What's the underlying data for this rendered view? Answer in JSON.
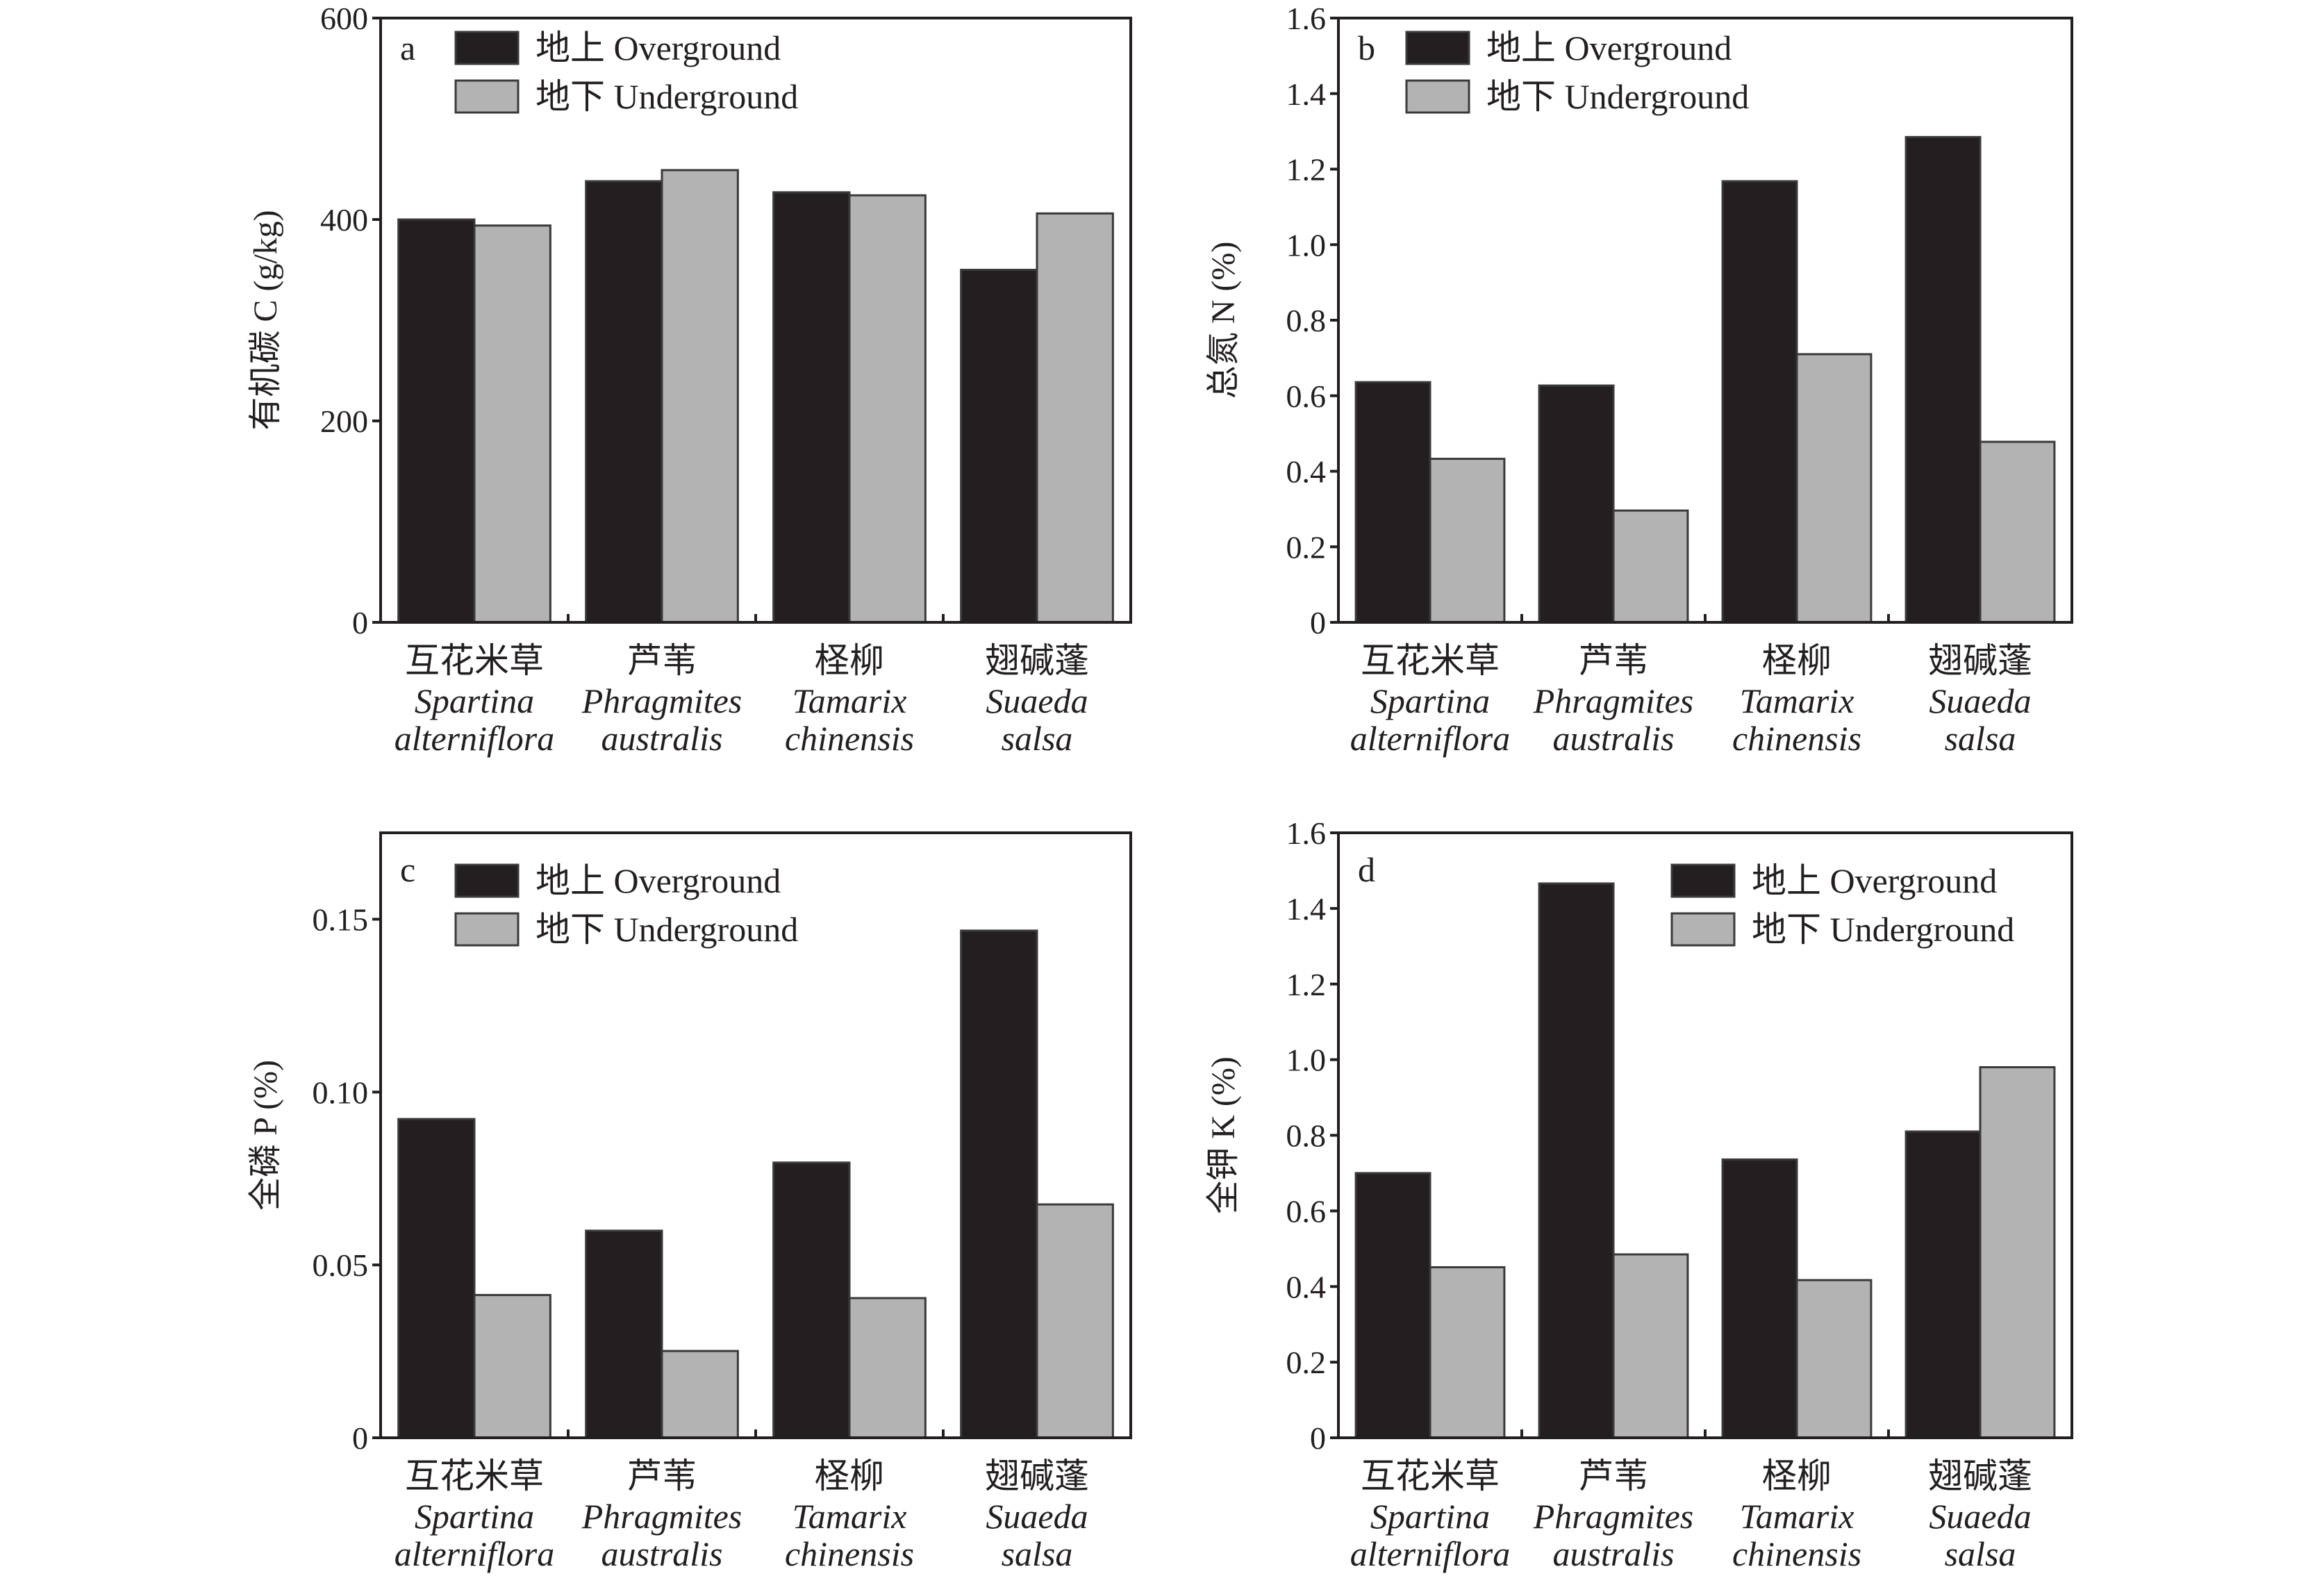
{
  "legend": {
    "overground": "地上 Overground",
    "underground": "地下 Underground"
  },
  "colors": {
    "overground": "#231f20",
    "underground": "#b3b3b3",
    "axis": "#231f20"
  },
  "categories": [
    {
      "cn": "互花米草",
      "latin1": "Spartina",
      "latin2": "alterniflora"
    },
    {
      "cn": "芦苇",
      "latin1": "Phragmites",
      "latin2": "australis"
    },
    {
      "cn": "柽柳",
      "latin1": "Tamarix",
      "latin2": "chinensis"
    },
    {
      "cn": "翅碱蓬",
      "latin1": "Suaeda",
      "latin2": "salsa"
    }
  ],
  "chart_data": [
    {
      "type": "bar",
      "panel": "a",
      "title": "",
      "xlabel": "",
      "ylabel": "有机碳 C (g/kg)",
      "categories": [
        "互花米草 Spartina alterniflora",
        "芦苇 Phragmites australis",
        "柽柳 Tamarix chinensis",
        "翅碱蓬 Suaeda salsa"
      ],
      "series": [
        {
          "name": "地上 Overground",
          "values": [
            400,
            438,
            427,
            350
          ]
        },
        {
          "name": "地下 Underground",
          "values": [
            394,
            449,
            424,
            406
          ]
        }
      ],
      "ylim": [
        0,
        600
      ],
      "yticks": [
        0,
        200,
        400,
        600
      ],
      "ytick_labels": [
        "0",
        "200",
        "400",
        "600"
      ],
      "legend_position": "top-left",
      "grid": false
    },
    {
      "type": "bar",
      "panel": "b",
      "title": "",
      "xlabel": "",
      "ylabel": "总氮 N (%)",
      "categories": [
        "互花米草 Spartina alterniflora",
        "芦苇 Phragmites australis",
        "柽柳 Tamarix chinensis",
        "翅碱蓬 Suaeda salsa"
      ],
      "series": [
        {
          "name": "地上 Overground",
          "values": [
            0.636,
            0.627,
            1.168,
            1.285
          ]
        },
        {
          "name": "地下 Underground",
          "values": [
            0.433,
            0.296,
            0.71,
            0.478
          ]
        }
      ],
      "ylim": [
        0,
        1.6
      ],
      "yticks": [
        0,
        0.2,
        0.4,
        0.6,
        0.8,
        1.0,
        1.2,
        1.4,
        1.6
      ],
      "ytick_labels": [
        "0",
        "0.2",
        "0.4",
        "0.6",
        "0.8",
        "1.0",
        "1.2",
        "1.4",
        "1.6"
      ],
      "legend_position": "top-left",
      "grid": false
    },
    {
      "type": "bar",
      "panel": "c",
      "title": "",
      "xlabel": "",
      "ylabel": "全磷 P (%)",
      "categories": [
        "互花米草 Spartina alterniflora",
        "芦苇 Phragmites australis",
        "柽柳 Tamarix chinensis",
        "翅碱蓬 Suaeda salsa"
      ],
      "series": [
        {
          "name": "地上 Overground",
          "values": [
            0.0922,
            0.0599,
            0.0796,
            0.1467
          ]
        },
        {
          "name": "地下 Underground",
          "values": [
            0.0413,
            0.0251,
            0.0404,
            0.0675
          ]
        }
      ],
      "ylim": [
        0,
        0.175
      ],
      "yticks": [
        0,
        0.05,
        0.1,
        0.15
      ],
      "ytick_labels": [
        "0",
        "0.05",
        "0.10",
        "0.15"
      ],
      "legend_position": "top-left",
      "grid": false
    },
    {
      "type": "bar",
      "panel": "d",
      "title": "",
      "xlabel": "",
      "ylabel": "全钾 K (%)",
      "categories": [
        "互花米草 Spartina alterniflora",
        "芦苇 Phragmites australis",
        "柽柳 Tamarix chinensis",
        "翅碱蓬 Suaeda salsa"
      ],
      "series": [
        {
          "name": "地上 Overground",
          "values": [
            0.7,
            1.466,
            0.736,
            0.81
          ]
        },
        {
          "name": "地下 Underground",
          "values": [
            0.451,
            0.485,
            0.417,
            0.98
          ]
        }
      ],
      "ylim": [
        0,
        1.6
      ],
      "yticks": [
        0,
        0.2,
        0.4,
        0.6,
        0.8,
        1.0,
        1.2,
        1.4,
        1.6
      ],
      "ytick_labels": [
        "0",
        "0.2",
        "0.4",
        "0.6",
        "0.8",
        "1.0",
        "1.2",
        "1.4",
        "1.6"
      ],
      "legend_position": "top-right",
      "grid": false
    }
  ]
}
